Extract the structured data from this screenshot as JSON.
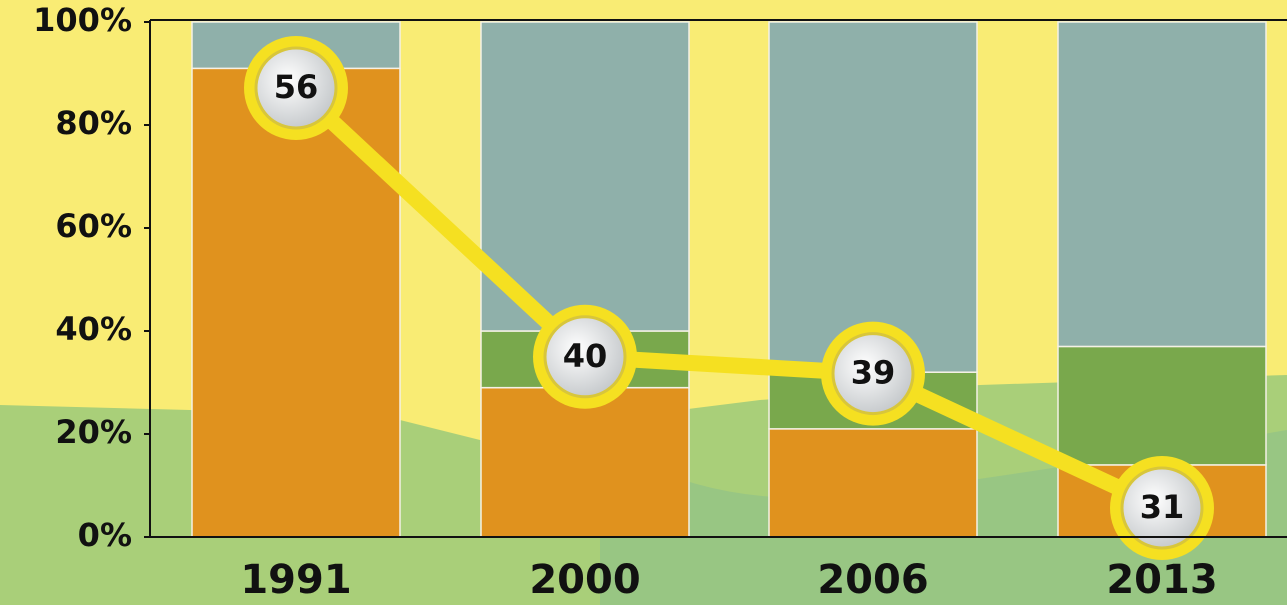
{
  "chart_data": {
    "type": "bar",
    "stacked": true,
    "categories": [
      "1991",
      "2000",
      "2006",
      "2013"
    ],
    "series": [
      {
        "color": "#e0921e",
        "values": [
          91,
          29,
          21,
          14
        ]
      },
      {
        "color": "#79a84c",
        "values": [
          0,
          11,
          11,
          23
        ]
      },
      {
        "color": "#8fb0aa",
        "values": [
          9,
          60,
          68,
          63
        ]
      }
    ],
    "line": {
      "color": "#f5e021",
      "values": [
        56,
        40,
        39,
        31
      ]
    },
    "ylim": [
      0,
      100
    ],
    "yticks": [
      {
        "value": 0,
        "label": "0%"
      },
      {
        "value": 20,
        "label": "20%"
      },
      {
        "value": 40,
        "label": "40%"
      },
      {
        "value": 60,
        "label": "60%"
      },
      {
        "value": 80,
        "label": "80%"
      },
      {
        "value": 100,
        "label": "100%"
      }
    ]
  }
}
